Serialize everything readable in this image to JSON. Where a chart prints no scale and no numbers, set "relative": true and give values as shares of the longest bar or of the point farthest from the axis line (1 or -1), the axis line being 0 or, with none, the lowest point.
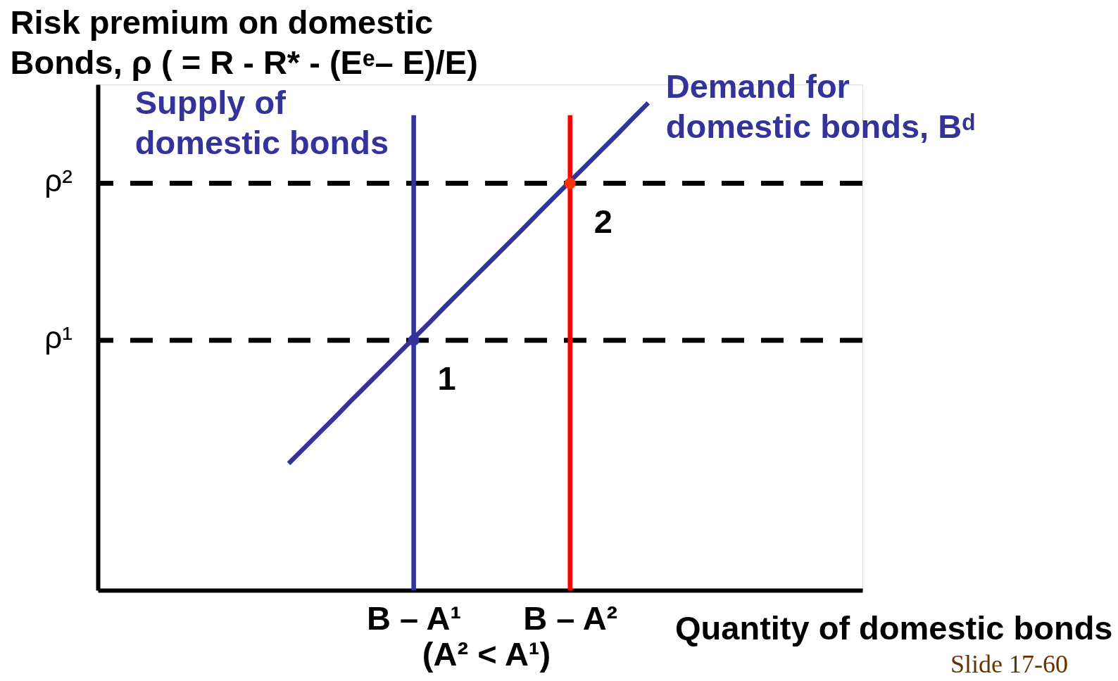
{
  "chart_data": {
    "type": "line",
    "relative": true,
    "ylabel": "Risk premium on domestic Bonds, ρ ( = R - R* - (Eᵉ– E)/E)",
    "xlabel": "Quantity of domestic bonds",
    "categories": [
      null,
      null,
      null,
      null,
      null,
      null,
      null,
      null,
      "B – A¹",
      null,
      null,
      null,
      null,
      null,
      null,
      null,
      null,
      null,
      "B – A²",
      null,
      null,
      null,
      null,
      null
    ],
    "series": [
      {
        "name": "Supply of domestic bonds",
        "color": "#333399",
        "x": [
          "B – A¹",
          "B – A¹"
        ],
        "values": [
          0,
          0.975
        ]
      },
      {
        "color": "#ff0000",
        "x": [
          "B – A²",
          "B – A²"
        ],
        "values": [
          0,
          0.975
        ]
      },
      {
        "name": "Demand for domestic bonds, Bᵈ",
        "color": "#333399",
        "values": [
          0.26,
          0.292,
          0.324,
          0.356,
          0.389,
          0.421,
          0.453,
          0.485,
          0.517,
          0.549,
          0.582,
          0.614,
          0.646,
          0.678,
          0.71,
          0.742,
          0.775,
          0.807,
          0.839,
          0.871,
          0.903,
          0.935,
          0.968,
          1
        ]
      },
      {
        "type": "scatter",
        "color": "#333399",
        "x": [
          "B – A¹"
        ],
        "values": [
          0.513
        ]
      },
      {
        "type": "scatter",
        "color": "#ff3300",
        "x": [
          "B – A²"
        ],
        "values": [
          0.835
        ]
      }
    ],
    "ref_lines": [
      {
        "axis": "y",
        "value": 0.835,
        "label": "ρ²",
        "color": "#000000",
        "line_style": "dashed"
      },
      {
        "axis": "y",
        "value": 0.513,
        "label": "ρ¹",
        "color": "#000000",
        "line_style": "dashed"
      }
    ],
    "annotations": [
      {
        "text": "1",
        "x": "B – A¹",
        "y": 0.513
      },
      {
        "text": "2",
        "x": "B – A²",
        "y": 0.835
      },
      "(A² < A¹)",
      "Slide 17-60"
    ]
  }
}
